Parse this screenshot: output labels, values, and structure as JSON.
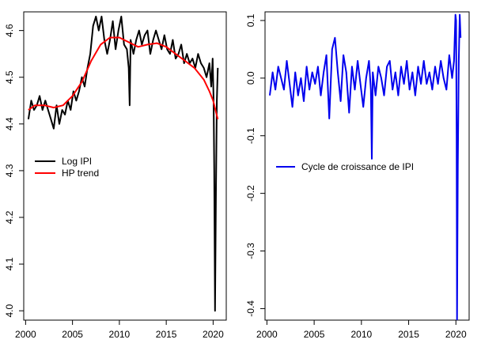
{
  "chart_data": [
    {
      "type": "line",
      "title": "",
      "xlabel": "",
      "ylabel": "",
      "xlim": [
        1999.8,
        2021.4
      ],
      "ylim": [
        3.98,
        4.64
      ],
      "xticks": [
        2000,
        2005,
        2010,
        2015,
        2020
      ],
      "yticks": [
        4.0,
        4.1,
        4.2,
        4.3,
        4.4,
        4.5,
        4.6
      ],
      "legend_position": "left",
      "series": [
        {
          "name": "Log IPI",
          "color": "#000000",
          "x": [
            2000.3,
            2000.6,
            2000.9,
            2001.2,
            2001.5,
            2001.8,
            2002.1,
            2002.4,
            2002.7,
            2003.0,
            2003.3,
            2003.6,
            2003.9,
            2004.2,
            2004.5,
            2004.8,
            2005.1,
            2005.4,
            2005.7,
            2006.0,
            2006.3,
            2006.6,
            2006.9,
            2007.2,
            2007.5,
            2007.8,
            2008.1,
            2008.4,
            2008.7,
            2009.0,
            2009.3,
            2009.6,
            2009.9,
            2010.2,
            2010.5,
            2010.8,
            2011.0,
            2011.1,
            2011.2,
            2011.5,
            2011.8,
            2012.1,
            2012.4,
            2012.7,
            2013.0,
            2013.3,
            2013.6,
            2013.9,
            2014.2,
            2014.5,
            2014.8,
            2015.1,
            2015.4,
            2015.7,
            2016.0,
            2016.3,
            2016.6,
            2016.9,
            2017.2,
            2017.5,
            2017.8,
            2018.1,
            2018.4,
            2018.7,
            2019.0,
            2019.3,
            2019.6,
            2019.8,
            2019.95,
            2020.05,
            2020.12,
            2020.2,
            2020.3,
            2020.4,
            2020.5
          ],
          "values": [
            4.41,
            4.45,
            4.43,
            4.44,
            4.46,
            4.43,
            4.45,
            4.43,
            4.41,
            4.39,
            4.44,
            4.4,
            4.43,
            4.42,
            4.45,
            4.43,
            4.47,
            4.45,
            4.47,
            4.5,
            4.48,
            4.52,
            4.55,
            4.61,
            4.63,
            4.6,
            4.63,
            4.58,
            4.55,
            4.58,
            4.62,
            4.56,
            4.6,
            4.63,
            4.57,
            4.56,
            4.52,
            4.44,
            4.58,
            4.55,
            4.58,
            4.6,
            4.57,
            4.59,
            4.6,
            4.55,
            4.58,
            4.6,
            4.58,
            4.56,
            4.59,
            4.56,
            4.55,
            4.58,
            4.54,
            4.55,
            4.57,
            4.53,
            4.55,
            4.53,
            4.54,
            4.52,
            4.55,
            4.53,
            4.52,
            4.5,
            4.53,
            4.48,
            4.54,
            4.45,
            4.3,
            4.0,
            4.26,
            4.45,
            4.52
          ]
        },
        {
          "name": "HP trend",
          "color": "#ff0000",
          "x": [
            2000.3,
            2001,
            2002,
            2003,
            2004,
            2005,
            2006,
            2007,
            2008,
            2009,
            2010,
            2011,
            2012,
            2013,
            2014,
            2015,
            2016,
            2017,
            2018,
            2019,
            2019.6,
            2020,
            2020.5
          ],
          "values": [
            4.43,
            4.44,
            4.44,
            4.435,
            4.44,
            4.46,
            4.49,
            4.535,
            4.57,
            4.585,
            4.585,
            4.575,
            4.565,
            4.57,
            4.573,
            4.565,
            4.55,
            4.535,
            4.52,
            4.495,
            4.47,
            4.45,
            4.41
          ]
        }
      ]
    },
    {
      "type": "line",
      "title": "",
      "xlabel": "",
      "ylabel": "",
      "xlim": [
        1999.8,
        2021.4
      ],
      "ylim": [
        -0.42,
        0.115
      ],
      "xticks": [
        2000,
        2005,
        2010,
        2015,
        2020
      ],
      "yticks": [
        -0.4,
        -0.3,
        -0.2,
        -0.1,
        0.0,
        0.1
      ],
      "legend_position": "middle-left",
      "series": [
        {
          "name": "Cycle de croissance de IPI",
          "color": "#0000ee",
          "x": [
            2000.3,
            2000.6,
            2000.9,
            2001.2,
            2001.5,
            2001.8,
            2002.1,
            2002.4,
            2002.7,
            2003.0,
            2003.3,
            2003.6,
            2003.9,
            2004.2,
            2004.5,
            2004.8,
            2005.1,
            2005.4,
            2005.7,
            2006.0,
            2006.3,
            2006.6,
            2006.9,
            2007.2,
            2007.5,
            2007.8,
            2008.1,
            2008.4,
            2008.7,
            2009.0,
            2009.3,
            2009.6,
            2009.9,
            2010.2,
            2010.5,
            2010.8,
            2011.0,
            2011.1,
            2011.2,
            2011.5,
            2011.8,
            2012.1,
            2012.4,
            2012.7,
            2013.0,
            2013.3,
            2013.6,
            2013.9,
            2014.2,
            2014.5,
            2014.8,
            2015.1,
            2015.4,
            2015.7,
            2016.0,
            2016.3,
            2016.6,
            2016.9,
            2017.2,
            2017.5,
            2017.8,
            2018.1,
            2018.4,
            2018.7,
            2019.0,
            2019.3,
            2019.6,
            2019.8,
            2019.95,
            2020.02,
            2020.08,
            2020.12,
            2020.2,
            2020.3,
            2020.4,
            2020.5
          ],
          "values": [
            -0.03,
            0.01,
            -0.02,
            0.02,
            0.0,
            -0.02,
            0.03,
            -0.01,
            -0.05,
            0.01,
            -0.03,
            0.0,
            -0.04,
            0.02,
            -0.02,
            0.01,
            -0.01,
            0.02,
            -0.03,
            0.01,
            0.04,
            -0.07,
            0.05,
            0.07,
            0.01,
            -0.04,
            0.04,
            0.01,
            -0.06,
            0.02,
            -0.02,
            0.03,
            -0.01,
            -0.05,
            0.0,
            0.03,
            -0.02,
            -0.14,
            0.01,
            -0.03,
            0.02,
            0.0,
            -0.03,
            0.02,
            0.03,
            -0.02,
            0.01,
            -0.03,
            0.02,
            -0.01,
            0.03,
            -0.02,
            0.01,
            -0.03,
            0.02,
            -0.01,
            0.03,
            -0.01,
            0.01,
            -0.02,
            0.02,
            -0.01,
            0.03,
            0.0,
            -0.02,
            0.04,
            0.0,
            0.03,
            0.11,
            0.1,
            -0.1,
            -0.42,
            -0.15,
            0.03,
            0.11,
            0.07
          ]
        }
      ]
    }
  ]
}
